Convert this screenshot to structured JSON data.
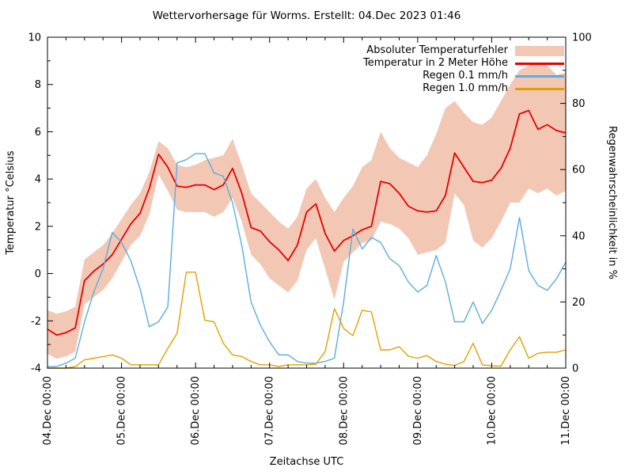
{
  "title": "Wettervorhersage für Worms. Erstellt: 04.Dec 2023 01:46",
  "axes": {
    "x": {
      "label": "Zeitachse UTC",
      "tick_labels": [
        "04.Dec 00:00",
        "05.Dec 00:00",
        "06.Dec 00:00",
        "07.Dec 00:00",
        "08.Dec 00:00",
        "09.Dec 00:00",
        "10.Dec 00:00",
        "11.Dec 00:00"
      ],
      "major_step_hours": 24,
      "minor_step_hours": 6,
      "range_hours": [
        0,
        168
      ]
    },
    "y_left": {
      "label": "Temperatur °Celsius",
      "min": -4,
      "max": 10,
      "ticks": [
        -4,
        -2,
        0,
        2,
        4,
        6,
        8,
        10
      ],
      "minor_ticks": [
        -3,
        -1,
        1,
        3,
        5,
        7,
        9
      ]
    },
    "y_right": {
      "label": "Regenwahrscheinlichkeit in %",
      "min": 0,
      "max": 100,
      "ticks": [
        0,
        20,
        40,
        60,
        80,
        100
      ],
      "minor_ticks": [
        10,
        30,
        50,
        70,
        90
      ]
    }
  },
  "legend": [
    {
      "label": "Absoluter Temperaturfehler",
      "type": "band",
      "color": "#f2c7b4"
    },
    {
      "label": "Temperatur in 2 Meter Höhe",
      "type": "line",
      "color": "#e60000"
    },
    {
      "label": "Regen 0.1 mm/h",
      "type": "line",
      "color": "#5cacdf"
    },
    {
      "label": "Regen 1.0 mm/h",
      "type": "line",
      "color": "#e3a000"
    }
  ],
  "colors": {
    "band": "#f2c7b4",
    "temperature": "#e60000",
    "rain01": "#5cacdf",
    "rain10": "#e3a000",
    "axis": "#000000",
    "background": "#ffffff"
  },
  "chart_data": {
    "type": "line",
    "title": "Wettervorhersage für Worms. Erstellt: 04.Dec 2023 01:46",
    "xlabel": "Zeitachse UTC",
    "ylabel_left": "Temperatur °Celsius",
    "ylabel_right": "Regenwahrscheinlichkeit in %",
    "x_start_label": "04.Dec 00:00",
    "x_end_label": "11.Dec 00:00",
    "ylim_left": [
      -4,
      10
    ],
    "ylim_right": [
      0,
      100
    ],
    "grid": false,
    "legend_position": "top-right-inside",
    "x_hours": [
      0,
      3,
      6,
      9,
      12,
      15,
      18,
      21,
      24,
      27,
      30,
      33,
      36,
      39,
      42,
      45,
      48,
      51,
      54,
      57,
      60,
      63,
      66,
      69,
      72,
      75,
      78,
      81,
      84,
      87,
      90,
      93,
      96,
      99,
      102,
      105,
      108,
      111,
      114,
      117,
      120,
      123,
      126,
      129,
      132,
      135,
      138,
      141,
      144,
      147,
      150,
      153,
      156,
      159,
      162,
      165,
      168
    ],
    "series": [
      {
        "name": "Absoluter Temperaturfehler",
        "type": "band",
        "axis": "left",
        "color": "#f2c7b4",
        "lower": [
          -3.4,
          -3.6,
          -3.5,
          -3.3,
          -1.3,
          -1.0,
          -0.7,
          -0.2,
          0.5,
          1.2,
          1.6,
          2.5,
          4.2,
          3.5,
          2.7,
          2.6,
          2.6,
          2.6,
          2.4,
          2.6,
          3.2,
          2.2,
          0.8,
          0.4,
          -0.2,
          -0.5,
          -0.8,
          -0.3,
          1.0,
          1.5,
          0.2,
          -1.1,
          0.5,
          0.9,
          1.3,
          1.4,
          2.2,
          2.1,
          1.9,
          1.5,
          0.8,
          0.9,
          1.0,
          1.3,
          3.4,
          2.9,
          1.4,
          1.1,
          1.5,
          2.2,
          3.0,
          3.0,
          3.6,
          3.4,
          3.6,
          3.3,
          3.5
        ],
        "upper": [
          -1.55,
          -1.7,
          -1.6,
          -1.4,
          0.6,
          0.9,
          1.2,
          1.7,
          2.3,
          2.9,
          3.4,
          4.3,
          5.6,
          5.3,
          4.6,
          4.5,
          4.6,
          4.8,
          4.9,
          5.0,
          5.7,
          4.6,
          3.4,
          3.0,
          2.6,
          2.2,
          1.9,
          2.4,
          3.6,
          4.0,
          3.2,
          2.6,
          3.2,
          3.7,
          4.5,
          4.8,
          6.0,
          5.3,
          4.9,
          4.7,
          4.5,
          5.0,
          5.9,
          7.0,
          7.3,
          6.8,
          6.4,
          6.3,
          6.6,
          7.3,
          8.0,
          8.6,
          8.8,
          8.9,
          8.8,
          8.4,
          8.5
        ]
      },
      {
        "name": "Temperatur in 2 Meter Höhe",
        "type": "line",
        "axis": "left",
        "color": "#e60000",
        "values": [
          -2.35,
          -2.6,
          -2.5,
          -2.3,
          -0.3,
          0.1,
          0.4,
          0.8,
          1.45,
          2.1,
          2.55,
          3.6,
          5.05,
          4.5,
          3.7,
          3.65,
          3.75,
          3.75,
          3.55,
          3.75,
          4.45,
          3.4,
          1.95,
          1.8,
          1.35,
          1.0,
          0.55,
          1.2,
          2.6,
          2.95,
          1.7,
          0.95,
          1.4,
          1.6,
          1.85,
          2.0,
          3.9,
          3.8,
          3.4,
          2.85,
          2.65,
          2.6,
          2.65,
          3.3,
          5.1,
          4.5,
          3.9,
          3.85,
          3.95,
          4.45,
          5.3,
          6.75,
          6.9,
          6.1,
          6.3,
          6.05,
          5.95
        ]
      },
      {
        "name": "Regen 0.1 mm/h",
        "type": "line",
        "axis": "right",
        "color": "#5cacdf",
        "values": [
          0.5,
          0.5,
          1.5,
          3,
          14,
          23,
          30,
          41,
          38,
          32.5,
          24,
          12.5,
          14,
          18.5,
          62,
          63,
          64.8,
          64.8,
          59,
          58,
          50,
          37,
          20,
          13,
          8,
          4,
          4,
          2,
          1.5,
          1.5,
          2,
          3,
          20,
          42,
          36,
          39.5,
          38,
          33,
          31,
          26,
          23,
          25,
          34,
          26,
          14,
          14,
          20,
          13.5,
          17.5,
          23.5,
          30,
          45.5,
          29.5,
          25,
          23.5,
          27,
          32
        ]
      },
      {
        "name": "Regen 1.0 mm/h",
        "type": "line",
        "axis": "right",
        "color": "#e3a000",
        "values": [
          0,
          0,
          0,
          0.5,
          2.5,
          3,
          3.5,
          4,
          3,
          1,
          1,
          1,
          1,
          6,
          10.5,
          29,
          29,
          14.5,
          14,
          7.5,
          4,
          3.5,
          2,
          1,
          1,
          0.5,
          1,
          1,
          1,
          1.2,
          5,
          18,
          12,
          9.8,
          17.5,
          17,
          5.5,
          5.5,
          6.5,
          3.6,
          3,
          3.8,
          2,
          1.2,
          0.8,
          2,
          7.5,
          1,
          0.7,
          0.6,
          5.5,
          9.5,
          3,
          4.5,
          4.8,
          4.8,
          5.5
        ]
      }
    ]
  }
}
